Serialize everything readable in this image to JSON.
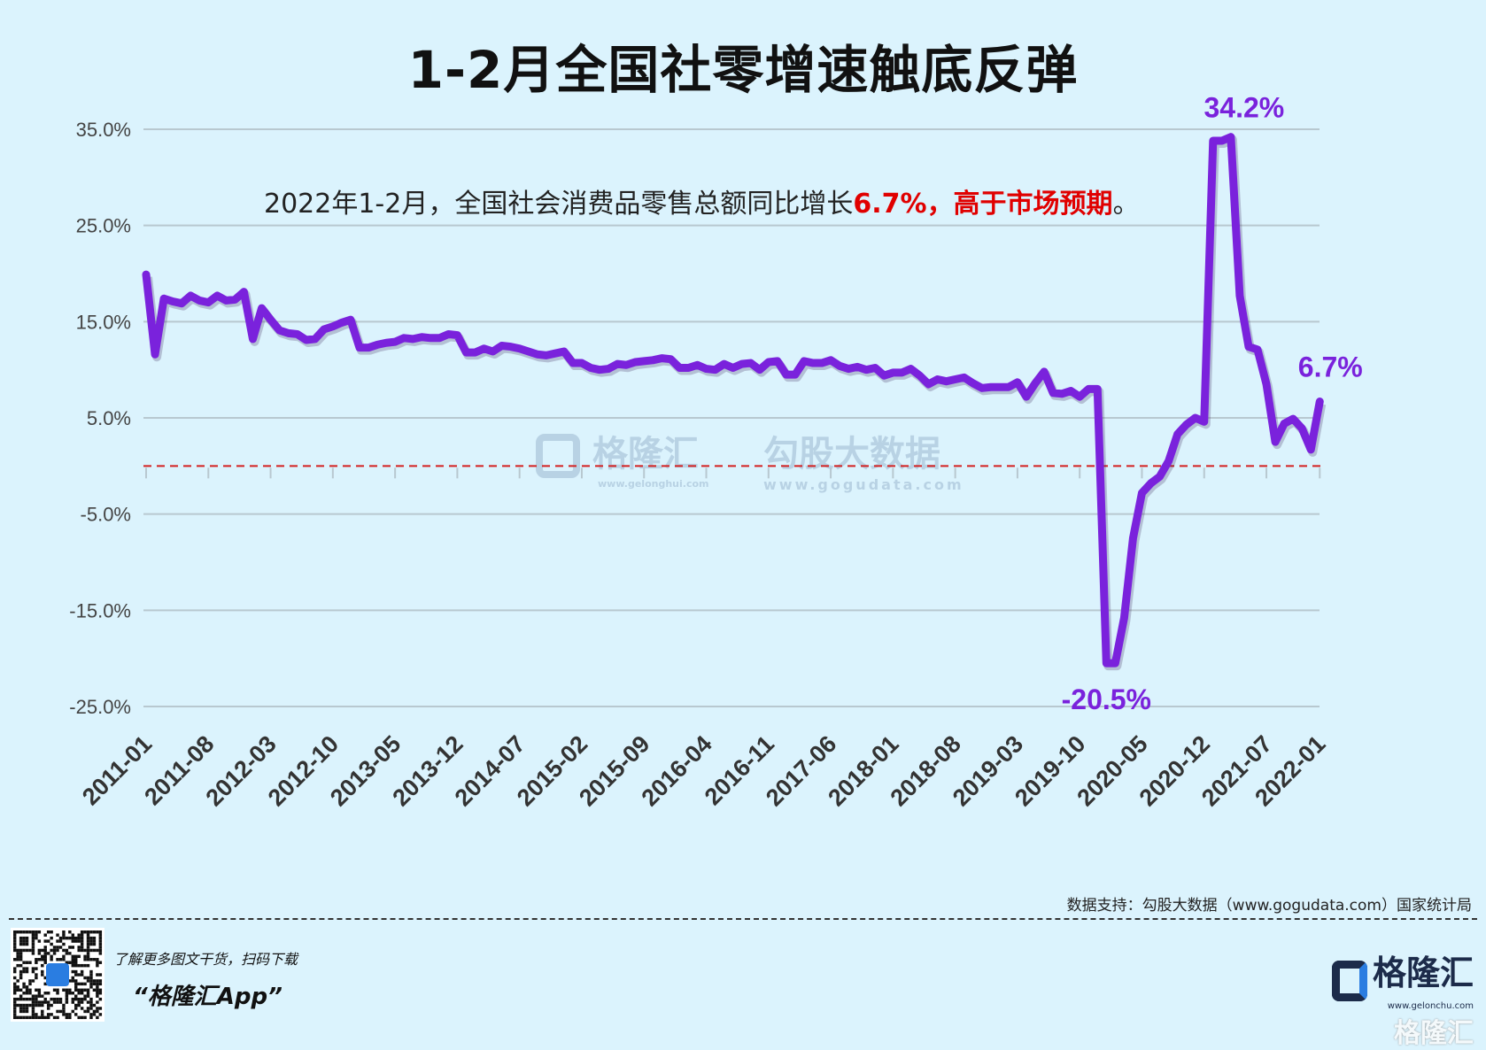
{
  "title": "1-2月全国社零增速触底反弹",
  "subtitle": {
    "prefix": "2022年1-2月，全国社会消费品零售总额同比增长",
    "highlight": "6.7%，高于市场预期",
    "suffix": "。"
  },
  "watermark": {
    "brand": "格隆汇",
    "brand_url": "www.gelonghui.com",
    "data_brand": "勾股大数据",
    "data_url": "www.gogudata.com"
  },
  "source": "数据支持：勾股大数据（www.gogudata.com）国家统计局",
  "footer": {
    "promo_line": "了解更多图文干货，扫码下载",
    "app_name": "“格隆汇App”",
    "brand": "格隆汇",
    "brand_url": "www.gelonchu.com",
    "brand_watermark": "格隆汇"
  },
  "colors": {
    "background": "#dbf3fd",
    "line": "#7a22dc",
    "zero_line": "#d42020",
    "grid": "#b8c8d0",
    "highlight": "#e00000"
  },
  "chart_data": {
    "type": "line",
    "title": "1-2月全国社零增速触底反弹",
    "xlabel": "",
    "ylabel": "",
    "ylim": [
      -25,
      35
    ],
    "y_ticks": [
      35,
      25,
      15,
      5,
      -5,
      -15,
      -25
    ],
    "y_tick_labels": [
      "35.0%",
      "25.0%",
      "15.0%",
      "5.0%",
      "-5.0%",
      "-15.0%",
      "-25.0%"
    ],
    "x_start": "2011-01",
    "x_tick_labels": [
      "2011-01",
      "2011-08",
      "2012-03",
      "2012-10",
      "2013-05",
      "2013-12",
      "2014-07",
      "2015-02",
      "2015-09",
      "2016-04",
      "2016-11",
      "2017-06",
      "2018-01",
      "2018-08",
      "2019-03",
      "2019-10",
      "2020-05",
      "2020-12",
      "2021-07",
      "2022-01"
    ],
    "grid": true,
    "reference_line": {
      "y": 0,
      "style": "dashed",
      "color": "#d42020"
    },
    "annotations": [
      {
        "x": "2021-03",
        "y": 34.2,
        "text": "34.2%"
      },
      {
        "x": "2020-01",
        "y": -20.5,
        "text": "-20.5%"
      },
      {
        "x": "2022-01",
        "y": 6.7,
        "text": "6.7%"
      }
    ],
    "series": [
      {
        "values": [
          19.9,
          11.6,
          17.4,
          17.1,
          16.9,
          17.7,
          17.2,
          17.0,
          17.7,
          17.2,
          17.3,
          18.1,
          13.2,
          16.4,
          15.2,
          14.1,
          13.8,
          13.7,
          13.1,
          13.2,
          14.2,
          14.5,
          14.9,
          15.2,
          12.3,
          12.3,
          12.6,
          12.8,
          12.9,
          13.3,
          13.2,
          13.4,
          13.3,
          13.3,
          13.7,
          13.6,
          11.8,
          11.8,
          12.2,
          11.9,
          12.5,
          12.4,
          12.2,
          11.9,
          11.6,
          11.5,
          11.7,
          11.9,
          10.7,
          10.7,
          10.2,
          10.0,
          10.1,
          10.6,
          10.5,
          10.8,
          10.9,
          11.0,
          11.2,
          11.1,
          10.2,
          10.2,
          10.5,
          10.1,
          10.0,
          10.6,
          10.2,
          10.6,
          10.7,
          10.0,
          10.8,
          10.9,
          9.5,
          9.5,
          10.9,
          10.7,
          10.7,
          11.0,
          10.4,
          10.1,
          10.3,
          10.0,
          10.2,
          9.4,
          9.7,
          9.7,
          10.1,
          9.4,
          8.5,
          9.0,
          8.8,
          9.0,
          9.2,
          8.6,
          8.1,
          8.2,
          8.2,
          8.2,
          8.7,
          7.2,
          8.6,
          9.8,
          7.6,
          7.5,
          7.8,
          7.2,
          8.0,
          8.0,
          -20.5,
          -20.5,
          -15.8,
          -7.5,
          -2.8,
          -1.8,
          -1.1,
          0.5,
          3.3,
          4.3,
          5.0,
          4.6,
          33.8,
          33.8,
          34.2,
          17.7,
          12.4,
          12.1,
          8.5,
          2.5,
          4.4,
          4.9,
          3.9,
          1.7,
          6.7
        ]
      }
    ]
  }
}
